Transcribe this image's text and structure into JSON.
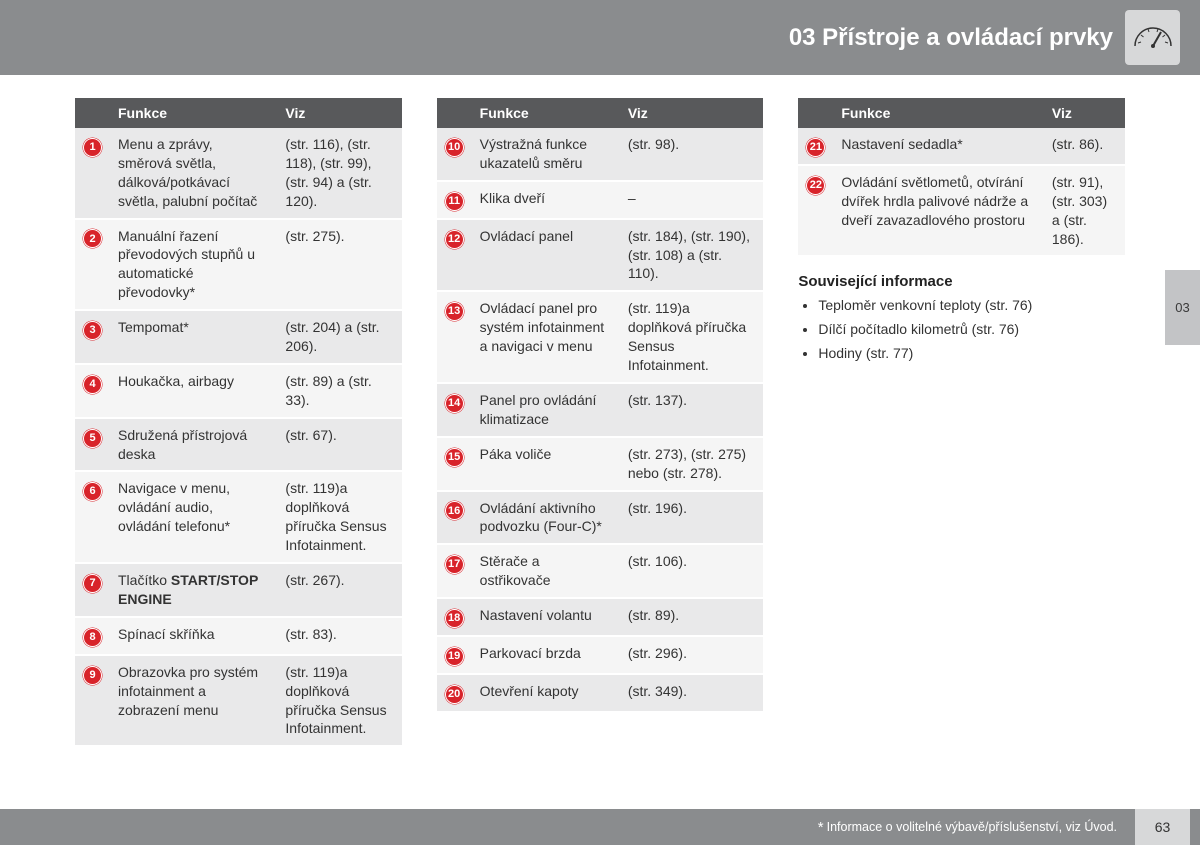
{
  "header": {
    "title": "03 Přístroje a ovládací prvky"
  },
  "sideTab": "03",
  "columnsHeader": {
    "funkce": "Funkce",
    "viz": "Viz"
  },
  "table1": [
    {
      "n": "1",
      "f": "Menu a zprávy, směrová světla, dálková/potkávací světla, palubní počítač",
      "v": "(str. 116), (str. 118), (str. 99), (str. 94) a (str. 120)."
    },
    {
      "n": "2",
      "f": "Manuální řazení převodových stupňů u automatické převodovky*",
      "v": "(str. 275)."
    },
    {
      "n": "3",
      "f": "Tempomat*",
      "v": "(str. 204) a (str. 206)."
    },
    {
      "n": "4",
      "f": "Houkačka, airbagy",
      "v": "(str. 89) a (str. 33)."
    },
    {
      "n": "5",
      "f": "Sdružená přístrojová deska",
      "v": "(str. 67)."
    },
    {
      "n": "6",
      "f": "Navigace v menu, ovládání audio, ovládání telefonu*",
      "v": "(str. 119)a doplňková příručka Sensus Infotainment."
    },
    {
      "n": "7",
      "f_pre": "Tlačítko ",
      "f_bold": "START/STOP ENGINE",
      "v": "(str. 267)."
    },
    {
      "n": "8",
      "f": "Spínací skříňka",
      "v": "(str. 83)."
    },
    {
      "n": "9",
      "f": "Obrazovka pro systém infotainment a zobrazení menu",
      "v": "(str. 119)a doplňková příručka Sensus Infotainment."
    }
  ],
  "table2": [
    {
      "n": "10",
      "f": "Výstražná funkce ukazatelů směru",
      "v": "(str. 98)."
    },
    {
      "n": "11",
      "f": "Klika dveří",
      "v": "–"
    },
    {
      "n": "12",
      "f": "Ovládací panel",
      "v": "(str. 184), (str. 190), (str. 108) a (str. 110)."
    },
    {
      "n": "13",
      "f": "Ovládací panel pro systém infotainment a navigaci v menu",
      "v": "(str. 119)a doplňková příručka Sensus Infotainment."
    },
    {
      "n": "14",
      "f": "Panel pro ovládání klimatizace",
      "v": "(str. 137)."
    },
    {
      "n": "15",
      "f": "Páka voliče",
      "v": "(str. 273), (str. 275) nebo (str. 278)."
    },
    {
      "n": "16",
      "f": "Ovládání aktivního podvozku (Four-C)*",
      "v": "(str. 196)."
    },
    {
      "n": "17",
      "f": "Stěrače a ostřikovače",
      "v": "(str. 106)."
    },
    {
      "n": "18",
      "f": "Nastavení volantu",
      "v": "(str. 89)."
    },
    {
      "n": "19",
      "f": "Parkovací brzda",
      "v": "(str. 296)."
    },
    {
      "n": "20",
      "f": "Otevření kapoty",
      "v": "(str. 349)."
    }
  ],
  "table3": [
    {
      "n": "21",
      "f": "Nastavení sedadla*",
      "v": "(str. 86)."
    },
    {
      "n": "22",
      "f": "Ovládání světlometů, otvírání dvířek hrdla palivové nádrže a dveří zavazadlového prostoru",
      "v": "(str. 91), (str. 303) a (str. 186)."
    }
  ],
  "related": {
    "heading": "Související informace",
    "items": [
      "Teploměr venkovní teploty (str. 76)",
      "Dílčí počítadlo kilometrů (str. 76)",
      "Hodiny (str. 77)"
    ]
  },
  "footer": {
    "note": "Informace o volitelné výbavě/příslušenství, viz Úvod.",
    "page": "63"
  },
  "colors": {
    "headerBg": "#8a8c8e",
    "badgeRed": "#d8232a",
    "rowOdd": "#e9e9ea",
    "rowEven": "#f5f5f5"
  }
}
